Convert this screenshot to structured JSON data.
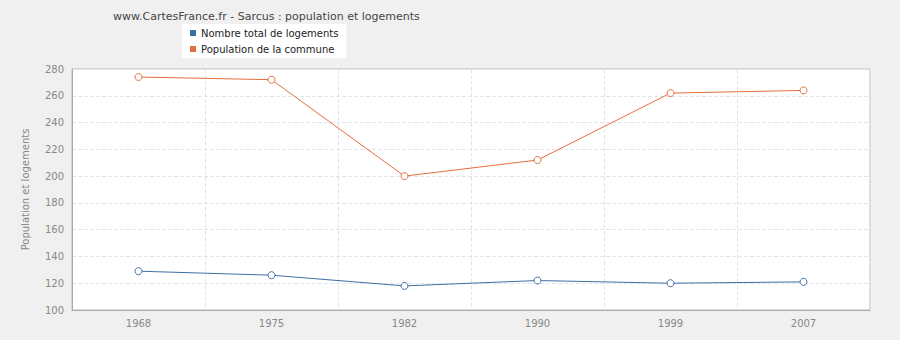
{
  "chart_data": {
    "type": "line",
    "title": "www.CartesFrance.fr - Sarcus : population et logements",
    "y_label": "Population et logements",
    "categories": [
      "1968",
      "1975",
      "1982",
      "1990",
      "1999",
      "2007"
    ],
    "series": [
      {
        "name": "Nombre total de logements",
        "color": "#3e6fa3",
        "marker": "circle",
        "values": [
          129,
          126,
          118,
          122,
          120,
          121
        ]
      },
      {
        "name": "Population de la commune",
        "color": "#e2703e",
        "marker": "circle",
        "values": [
          274,
          272,
          200,
          212,
          262,
          264
        ]
      }
    ],
    "ylim": [
      100,
      280
    ],
    "yticks": [
      100,
      120,
      140,
      160,
      180,
      200,
      220,
      240,
      260,
      280
    ],
    "grid": true,
    "legend": "top"
  }
}
